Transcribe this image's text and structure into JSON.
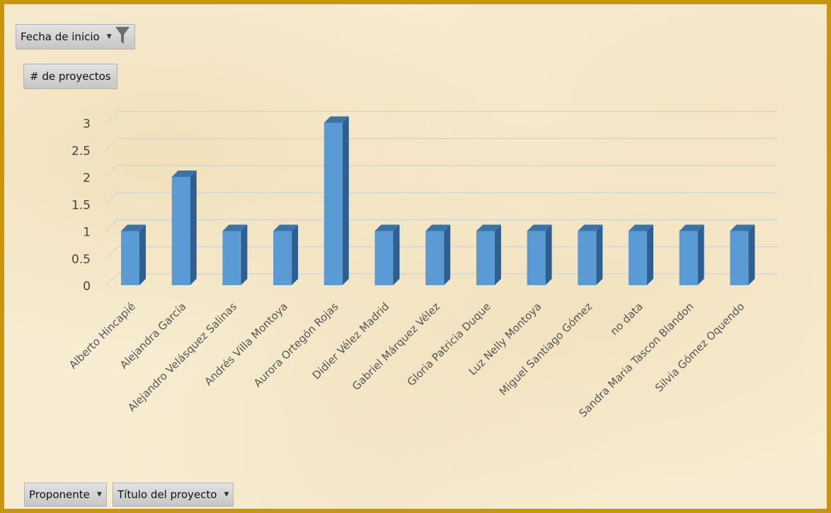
{
  "filter": {
    "label": "Fecha de inicio"
  },
  "measure": {
    "label": "# de proyectos"
  },
  "row_fields": {
    "proponente": "Proponente",
    "titulo": "Título del proyecto"
  },
  "colors": {
    "frame": "#c9950c",
    "bar_front": "#5b9bd5",
    "bar_side": "#2e5f8f",
    "bar_top": "#3b73a6",
    "grid": "#d0d4d8"
  },
  "icons": [
    "chevron-down-icon",
    "funnel-icon"
  ],
  "chart_data": {
    "type": "bar",
    "title": "",
    "xlabel": "",
    "ylabel": "",
    "ylim": [
      0,
      3
    ],
    "yticks": [
      "0",
      "0.5",
      "1",
      "1.5",
      "2",
      "2.5",
      "3"
    ],
    "grid": true,
    "categories": [
      "Alberto Hincapié",
      "Alejandra García",
      "Alejandro Velásquez Salinas",
      "Andrés Villa Montoya",
      "Aurora Ortegón Rojas",
      "Didier Vélez Madrid",
      "Gabriel Márquez Vélez",
      "Gloria Patricia Duque",
      "Luz Nelly Montoya",
      "Miguel Santiago Gómez",
      "no data",
      "Sandra Maria Tascon Blandon",
      "Silvia Gómez Oquendo"
    ],
    "values": [
      1,
      2,
      1,
      1,
      3,
      1,
      1,
      1,
      1,
      1,
      1,
      1,
      1
    ]
  }
}
